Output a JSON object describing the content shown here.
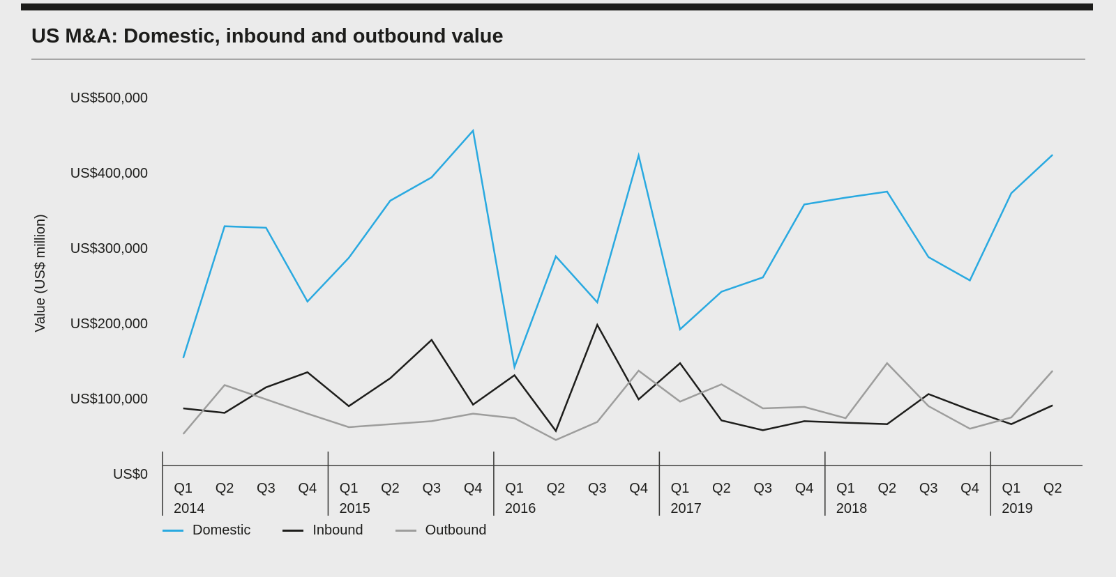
{
  "colors": {
    "background": "#EBEBEB",
    "top_bar": "#1D1D1B",
    "title_rule": "#A6A6A6",
    "axis": "#3E3E3C",
    "text": "#1D1D1B"
  },
  "chart_data": {
    "type": "line",
    "title": "US M&A: Domestic, inbound and outbound value",
    "ylabel": "Value (US$ million)",
    "ylim": [
      0,
      500000
    ],
    "grid": false,
    "legend_position": "bottom-left",
    "y_ticks": [
      {
        "value": 0,
        "label": "US$0"
      },
      {
        "value": 100000,
        "label": "US$100,000"
      },
      {
        "value": 200000,
        "label": "US$200,000"
      },
      {
        "value": 300000,
        "label": "US$300,000"
      },
      {
        "value": 400000,
        "label": "US$400,000"
      },
      {
        "value": 500000,
        "label": "US$500,000"
      }
    ],
    "x_groups": [
      {
        "year": "2014",
        "quarters": [
          "Q1",
          "Q2",
          "Q3",
          "Q4"
        ]
      },
      {
        "year": "2015",
        "quarters": [
          "Q1",
          "Q2",
          "Q3",
          "Q4"
        ]
      },
      {
        "year": "2016",
        "quarters": [
          "Q1",
          "Q2",
          "Q3",
          "Q4"
        ]
      },
      {
        "year": "2017",
        "quarters": [
          "Q1",
          "Q2",
          "Q3",
          "Q4"
        ]
      },
      {
        "year": "2018",
        "quarters": [
          "Q1",
          "Q2",
          "Q3",
          "Q4"
        ]
      },
      {
        "year": "2019",
        "quarters": [
          "Q1",
          "Q2"
        ]
      }
    ],
    "series": [
      {
        "name": "Domestic",
        "color": "#29A9E0",
        "values": [
          154000,
          329000,
          327000,
          229000,
          287000,
          363000,
          394000,
          456000,
          142000,
          289000,
          228000,
          423000,
          192000,
          242000,
          261000,
          358000,
          367000,
          375000,
          288000,
          257000,
          373000,
          424000
        ]
      },
      {
        "name": "Inbound",
        "color": "#1D1D1B",
        "values": [
          87000,
          81000,
          115000,
          135000,
          90000,
          127000,
          178000,
          92000,
          131000,
          57000,
          198000,
          99000,
          147000,
          71000,
          58000,
          70000,
          68000,
          66000,
          106000,
          85000,
          66000,
          91000
        ]
      },
      {
        "name": "Outbound",
        "color": "#9D9D9C",
        "values": [
          53000,
          118000,
          99000,
          80000,
          62000,
          66000,
          70000,
          80000,
          74000,
          45000,
          69000,
          137000,
          96000,
          119000,
          87000,
          89000,
          74000,
          147000,
          90000,
          60000,
          75000,
          137000
        ]
      }
    ]
  }
}
